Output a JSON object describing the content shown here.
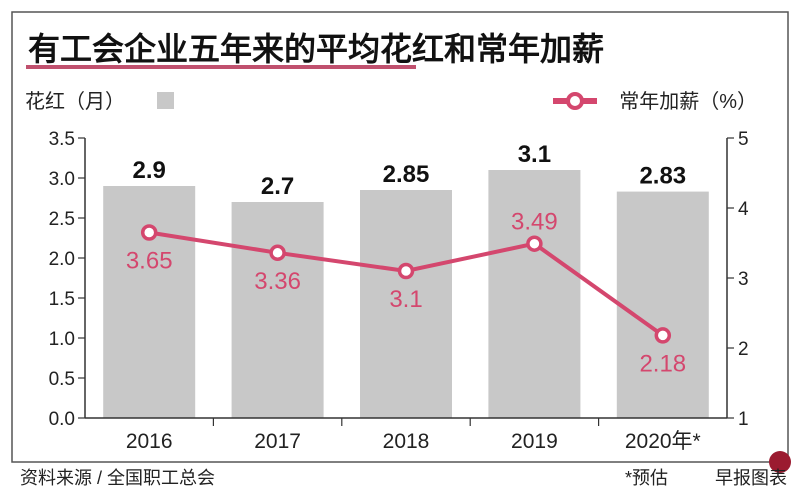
{
  "chart_data": {
    "type": "bar+line",
    "title": "有工会企业五年来的平均花红和常年加薪",
    "categories": [
      "2016",
      "2017",
      "2018",
      "2019",
      "2020年*"
    ],
    "series": [
      {
        "name": "花红（月）",
        "type": "bar",
        "axis": "left",
        "values": [
          2.9,
          2.7,
          2.85,
          3.1,
          2.83
        ],
        "labels": [
          "2.9",
          "2.7",
          "2.85",
          "3.1",
          "2.83"
        ],
        "color": "#c8c8c8"
      },
      {
        "name": "常年加薪（%）",
        "type": "line",
        "axis": "right",
        "values": [
          3.65,
          3.36,
          3.1,
          3.49,
          2.18
        ],
        "labels": [
          "3.65",
          "3.36",
          "3.1",
          "3.49",
          "2.18"
        ],
        "color": "#d4476e"
      }
    ],
    "left_axis": {
      "label": "花红（月）",
      "ylim": [
        0,
        3.5
      ],
      "ticks": [
        "0.0",
        "0.5",
        "1.0",
        "1.5",
        "2.0",
        "2.5",
        "3.0",
        "3.5"
      ]
    },
    "right_axis": {
      "label": "常年加薪（%）",
      "ylim": [
        1,
        5
      ],
      "ticks": [
        "1",
        "2",
        "3",
        "4",
        "5"
      ]
    },
    "grid": false,
    "legend_placement": "top"
  },
  "footer": {
    "source": "资料来源 / 全国职工总会",
    "note": "*预估",
    "credit": "早报图表"
  },
  "colors": {
    "accent": "#d4476e",
    "bar": "#c8c8c8",
    "title_underline": "#c0506e"
  }
}
